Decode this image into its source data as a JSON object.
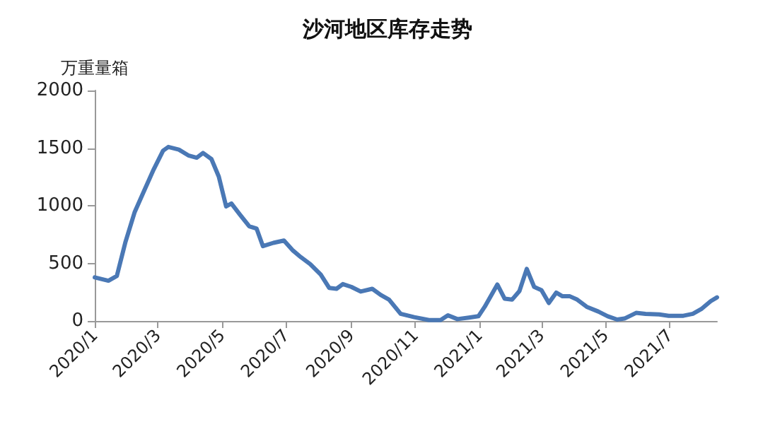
{
  "chart_data": {
    "type": "line",
    "title": "沙河地区库存走势",
    "ylabel": "万重量箱",
    "x": [
      "2020-01-01",
      "2020-01-14",
      "2020-01-22",
      "2020-01-30",
      "2020-02-08",
      "2020-02-17",
      "2020-02-26",
      "2020-03-06",
      "2020-03-11",
      "2020-03-21",
      "2020-03-30",
      "2020-04-07",
      "2020-04-13",
      "2020-04-21",
      "2020-04-28",
      "2020-05-05",
      "2020-05-10",
      "2020-05-18",
      "2020-05-27",
      "2020-06-03",
      "2020-06-09",
      "2020-06-19",
      "2020-06-29",
      "2020-07-07",
      "2020-07-15",
      "2020-07-24",
      "2020-08-03",
      "2020-08-11",
      "2020-08-18",
      "2020-08-24",
      "2020-09-01",
      "2020-09-10",
      "2020-09-21",
      "2020-09-29",
      "2020-10-07",
      "2020-10-18",
      "2020-10-31",
      "2020-11-14",
      "2020-11-25",
      "2020-12-02",
      "2020-12-11",
      "2020-12-22",
      "2020-12-31",
      "2021-01-06",
      "2021-01-18",
      "2021-01-25",
      "2021-02-01",
      "2021-02-08",
      "2021-02-15",
      "2021-02-22",
      "2021-03-01",
      "2021-03-08",
      "2021-03-15",
      "2021-03-21",
      "2021-03-28",
      "2021-04-04",
      "2021-04-13",
      "2021-04-24",
      "2021-05-03",
      "2021-05-12",
      "2021-05-19",
      "2021-05-30",
      "2021-06-08",
      "2021-06-21",
      "2021-06-30",
      "2021-07-14",
      "2021-07-23",
      "2021-07-31",
      "2021-08-09",
      "2021-08-15"
    ],
    "series": [
      {
        "color": "#4a78b5",
        "values": [
          378,
          349,
          390,
          678,
          945,
          1130,
          1314,
          1478,
          1510,
          1487,
          1437,
          1417,
          1458,
          1405,
          1253,
          994,
          1019,
          924,
          821,
          801,
          649,
          678,
          698,
          616,
          554,
          493,
          402,
          287,
          279,
          320,
          296,
          255,
          279,
          226,
          185,
          62,
          33,
          8,
          8,
          49,
          16,
          29,
          41,
          123,
          316,
          193,
          185,
          259,
          452,
          296,
          267,
          156,
          246,
          214,
          214,
          185,
          123,
          82,
          41,
          12,
          21,
          70,
          62,
          57,
          45,
          45,
          62,
          103,
          172,
          205
        ]
      }
    ],
    "xlim": [
      "2020-01-01",
      "2021-08-15"
    ],
    "xticks": [
      {
        "value": "2020-01-01",
        "label": "2020/1"
      },
      {
        "value": "2020-03-01",
        "label": "2020/3"
      },
      {
        "value": "2020-05-01",
        "label": "2020/5"
      },
      {
        "value": "2020-07-01",
        "label": "2020/7"
      },
      {
        "value": "2020-09-01",
        "label": "2020/9"
      },
      {
        "value": "2020-11-01",
        "label": "2020/11"
      },
      {
        "value": "2021-01-01",
        "label": "2021/1"
      },
      {
        "value": "2021-03-01",
        "label": "2021/3"
      },
      {
        "value": "2021-05-01",
        "label": "2021/5"
      },
      {
        "value": "2021-07-01",
        "label": "2021/7"
      }
    ],
    "ylim": [
      0,
      2000
    ],
    "yticks": [
      0,
      500,
      1000,
      1500,
      2000
    ],
    "marker": "none",
    "line_style": "solid"
  }
}
